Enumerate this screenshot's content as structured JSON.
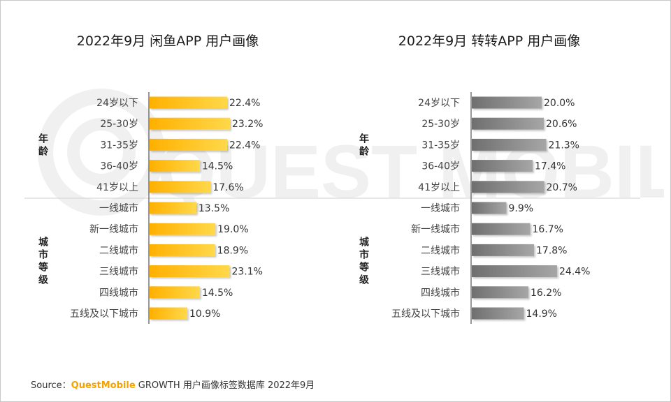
{
  "watermark": "QUEST MOBILE",
  "chart_data": [
    {
      "type": "bar",
      "orientation": "horizontal",
      "title": "2022年9月 闲鱼APP 用户画像",
      "color": "#ffc21a",
      "groups": [
        {
          "label": [
            "年",
            "龄"
          ],
          "range": [
            0,
            4
          ]
        },
        {
          "label": [
            "城",
            "市",
            "等",
            "级"
          ],
          "range": [
            5,
            10
          ]
        }
      ],
      "categories": [
        "24岁以下",
        "25-30岁",
        "31-35岁",
        "36-40岁",
        "41岁以上",
        "一线城市",
        "新一线城市",
        "二线城市",
        "三线城市",
        "四线城市",
        "五线及以下城市"
      ],
      "values": [
        22.4,
        23.2,
        22.4,
        14.5,
        17.6,
        13.5,
        19.0,
        18.9,
        23.1,
        14.5,
        10.9
      ],
      "value_labels": [
        "22.4%",
        "23.2%",
        "22.4%",
        "14.5%",
        "17.6%",
        "13.5%",
        "19.0%",
        "18.9%",
        "23.1%",
        "14.5%",
        "10.9%"
      ],
      "xlim": [
        0,
        25
      ]
    },
    {
      "type": "bar",
      "orientation": "horizontal",
      "title": "2022年9月 转转APP 用户画像",
      "color": "#8c8c8c",
      "groups": [
        {
          "label": [
            "年",
            "龄"
          ],
          "range": [
            0,
            4
          ]
        },
        {
          "label": [
            "城",
            "市",
            "等",
            "级"
          ],
          "range": [
            5,
            10
          ]
        }
      ],
      "categories": [
        "24岁以下",
        "25-30岁",
        "31-35岁",
        "36-40岁",
        "41岁以上",
        "一线城市",
        "新一线城市",
        "二线城市",
        "三线城市",
        "四线城市",
        "五线及以下城市"
      ],
      "values": [
        20.0,
        20.6,
        21.3,
        17.4,
        20.7,
        9.9,
        16.7,
        17.8,
        24.4,
        16.2,
        14.9
      ],
      "value_labels": [
        "20.0%",
        "20.6%",
        "21.3%",
        "17.4%",
        "20.7%",
        "9.9%",
        "16.7%",
        "17.8%",
        "24.4%",
        "16.2%",
        "14.9%"
      ],
      "xlim": [
        0,
        25
      ]
    }
  ],
  "footer": {
    "prefix": "Source：",
    "brand": "QuestMobile",
    "text": " GROWTH 用户画像标签数据库 2022年9月"
  }
}
